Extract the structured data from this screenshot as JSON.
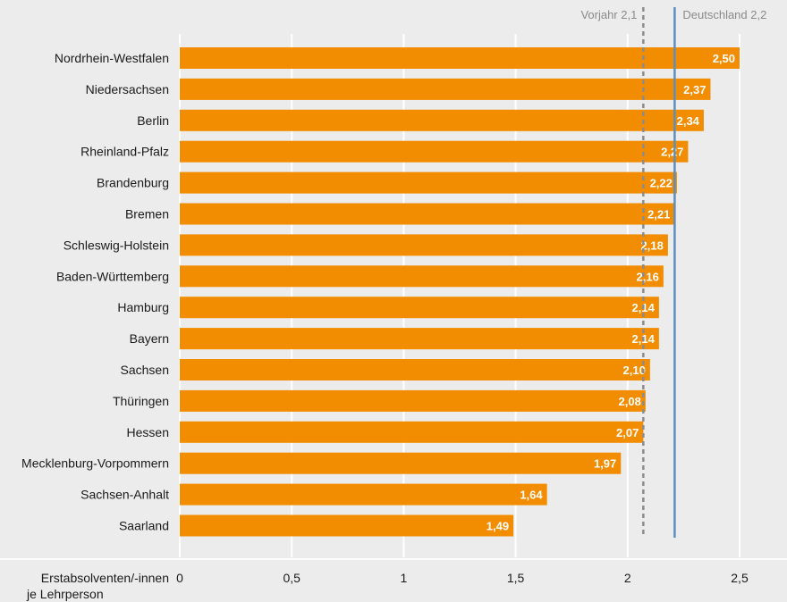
{
  "chart_data": {
    "type": "bar",
    "orientation": "horizontal",
    "categories": [
      "Nordrhein-Westfalen",
      "Niedersachsen",
      "Berlin",
      "Rheinland-Pfalz",
      "Brandenburg",
      "Bremen",
      "Schleswig-Holstein",
      "Baden-Württemberg",
      "Hamburg",
      "Bayern",
      "Sachsen",
      "Thüringen",
      "Hessen",
      "Mecklenburg-Vorpommern",
      "Sachsen-Anhalt",
      "Saarland"
    ],
    "values": [
      2.5,
      2.37,
      2.34,
      2.27,
      2.22,
      2.21,
      2.18,
      2.16,
      2.14,
      2.14,
      2.1,
      2.08,
      2.07,
      1.97,
      1.64,
      1.49
    ],
    "value_labels": [
      "2,50",
      "2,37",
      "2,34",
      "2,27",
      "2,22",
      "2,21",
      "2,18",
      "2,16",
      "2,14",
      "2,14",
      "2,10",
      "2,08",
      "2,07",
      "1,97",
      "1,64",
      "1,49"
    ],
    "xlim": [
      0,
      2.5
    ],
    "xticks": [
      0,
      0.5,
      1,
      1.5,
      2,
      2.5
    ],
    "xtick_labels": [
      "0",
      "0,5",
      "1",
      "1,5",
      "2",
      "2,5"
    ],
    "xlabel": [
      "Erstabsolventen/-innen",
      "je Lehrperson"
    ],
    "grid": true,
    "reference_lines": [
      {
        "value": 2.07,
        "label": "Vorjahr 2,1",
        "style": "dashed",
        "color": "#8c8c8c"
      },
      {
        "value": 2.21,
        "label": "Deutschland 2,2",
        "style": "solid",
        "color": "#5b8fc0"
      }
    ],
    "colors": {
      "bar": "#f28c00",
      "background": "#ececec",
      "grid": "#ffffff"
    }
  }
}
